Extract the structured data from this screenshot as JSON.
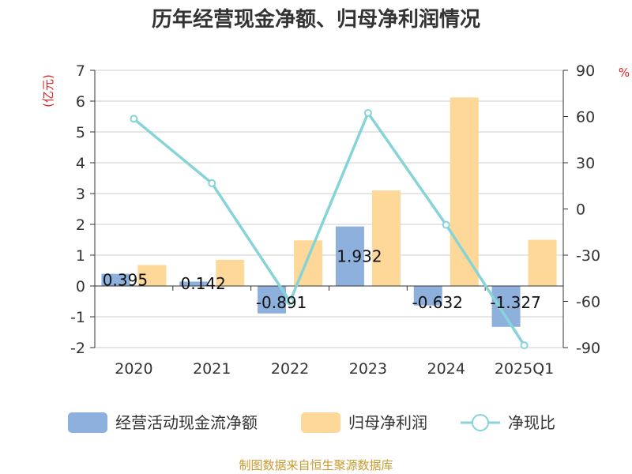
{
  "chart_data": {
    "type": "bar",
    "title": "历年经营现金净额、归母净利润情况",
    "categories": [
      "2020",
      "2021",
      "2022",
      "2023",
      "2024",
      "2025Q1"
    ],
    "y_left": {
      "label": "(亿元)",
      "ylim": [
        -2,
        7
      ],
      "ticks": [
        "-2",
        "-1",
        "0",
        "1",
        "2",
        "3",
        "4",
        "5",
        "6",
        "7"
      ]
    },
    "y_right": {
      "label": "%",
      "ylim": [
        -90,
        90
      ],
      "ticks": [
        "-90",
        "-60",
        "-30",
        "0",
        "30",
        "60",
        "90"
      ]
    },
    "series": [
      {
        "name": "经营活动现金流净额",
        "type": "bar",
        "axis": "left",
        "color": "#8eb0dc",
        "values": [
          0.395,
          0.142,
          -0.891,
          1.932,
          -0.632,
          -1.327
        ],
        "labels": [
          "0.395",
          "0.142",
          "-0.891",
          "1.932",
          "-0.632",
          "-1.327"
        ]
      },
      {
        "name": "归母净利润",
        "type": "bar",
        "axis": "left",
        "color": "#fdd898",
        "values": [
          0.68,
          0.85,
          1.48,
          3.1,
          6.12,
          1.5
        ]
      },
      {
        "name": "净现比",
        "type": "line",
        "axis": "right",
        "color": "#87d4d8",
        "values": [
          58.5,
          16.7,
          -60.0,
          62.3,
          -10.3,
          -88.5
        ]
      }
    ],
    "grid": true,
    "legend": "bottom"
  },
  "footer": {
    "source": "制图数据来自恒生聚源数据库"
  },
  "colors": {
    "title": "#333333",
    "unit_red": "#e02020",
    "source": "#c89b30",
    "grid": "#cccccc",
    "axis": "#333333"
  }
}
